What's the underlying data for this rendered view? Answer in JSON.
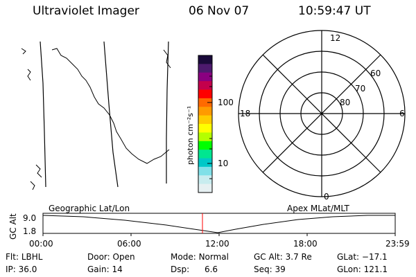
{
  "header": {
    "instrument": "Ultraviolet Imager",
    "date": "06 Nov 07",
    "time": "10:59:47 UT"
  },
  "colorbar": {
    "unit_label": "photon cm⁻²s⁻¹",
    "tick_labels": [
      "100",
      "10"
    ],
    "colors": [
      "#1a0a3a",
      "#4d1a6e",
      "#8a0080",
      "#c4004c",
      "#ff0000",
      "#ff6a00",
      "#ff9a00",
      "#ffcc00",
      "#ffff00",
      "#b4ff00",
      "#00ff00",
      "#00e690",
      "#00c8c8",
      "#80e0e8",
      "#c8ecef",
      "#e6f0f2"
    ]
  },
  "polar_plot": {
    "mlt_labels": {
      "top": "12",
      "bottom": "0",
      "left": "18",
      "right": "6"
    },
    "lat_labels": [
      "60",
      "70",
      "80"
    ]
  },
  "timeline": {
    "left_title": "Geographic Lat/Lon",
    "right_title": "Apex MLat/MLT",
    "y_axis_label": "GC Alt",
    "y_ticks": [
      "9.0",
      "1.8"
    ],
    "x_ticks": [
      "00:00",
      "06:00",
      "12:00",
      "18:00",
      "23:59"
    ],
    "current_time_color": "#ff0000"
  },
  "info": {
    "row1": [
      {
        "key": "Flt:",
        "value": "LBHL"
      },
      {
        "key": "Door:",
        "value": "Open"
      },
      {
        "key": "Mode:",
        "value": "Normal"
      },
      {
        "key": "GC Alt:",
        "value": "3.7 Re"
      },
      {
        "key": "GLat:",
        "value": "−17.1"
      }
    ],
    "row2": [
      {
        "key": "IP:",
        "value": "36.0"
      },
      {
        "key": "Gain:",
        "value": "14"
      },
      {
        "key": "Dsp:",
        "value": "6.6"
      },
      {
        "key": "Seq:",
        "value": "39"
      },
      {
        "key": "GLon:",
        "value": "121.1"
      }
    ]
  }
}
